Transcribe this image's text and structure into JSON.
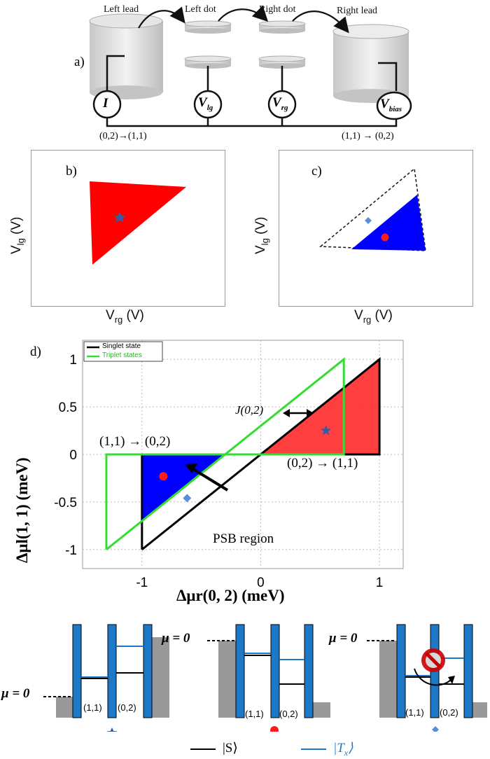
{
  "panel_a": {
    "label": "a)",
    "left_lead": "Left lead",
    "left_dot": "Left dot",
    "right_dot": "Right dot",
    "right_lead": "Right lead",
    "meter_i": "I",
    "meter_vlg": "V",
    "meter_vlg_sub": "lg",
    "meter_vrg": "V",
    "meter_vrg_sub": "rg",
    "meter_vbias": "V",
    "meter_vbias_sub": "bias",
    "transition_left": "(0,2)→(1,1)",
    "transition_right": "(1,1) → (0,2)"
  },
  "panel_b": {
    "label": "b)",
    "xlabel_main": "V",
    "xlabel_sub": "rg",
    "xlabel_unit": " (V)",
    "ylabel_main": "V",
    "ylabel_sub": "lg",
    "ylabel_unit": " (V)",
    "fill_color": "#ff0000",
    "marker": "star"
  },
  "panel_c": {
    "label": "c)",
    "xlabel_main": "V",
    "xlabel_sub": "rg",
    "xlabel_unit": " (V)",
    "ylabel_main": "V",
    "ylabel_sub": "lg",
    "ylabel_unit": " (V)",
    "fill_color": "#0000ff",
    "markers": [
      "diamond",
      "circle"
    ]
  },
  "panel_d": {
    "label": "d)",
    "legend": [
      "Singlet state",
      "Triplet states"
    ],
    "xlabel": "Δμr(0, 2) (meV)",
    "ylabel": "Δμl(1, 1) (meV)",
    "annot_j": "J(0,2)",
    "annot_left": "(1,1) → (0,2)",
    "annot_right": "(0,2) → (1,1)",
    "annot_psb": "PSB region",
    "colors": {
      "singlet": "#000000",
      "triplet": "#33dd33",
      "red_fill": "#ff2a2a",
      "blue_fill": "#0000ff"
    }
  },
  "chart_data": {
    "type": "line",
    "xlabel": "Δμr(0, 2) (meV)",
    "ylabel": "Δμl(1, 1) (meV)",
    "xlim": [
      -1.5,
      1.2
    ],
    "ylim": [
      -1.2,
      1.2
    ],
    "xticks": [
      -1,
      0,
      1
    ],
    "xtick_labels": [
      "-1",
      "0",
      "1"
    ],
    "yticks": [
      1,
      0.5,
      0,
      -0.5,
      -1
    ],
    "ytick_labels": [
      "1",
      "0.5",
      "0",
      "-0.5",
      "-1"
    ],
    "grid": true,
    "legend_position": "top-left",
    "series": [
      {
        "name": "Singlet state",
        "x": [
          -1,
          1,
          1,
          -1,
          -1
        ],
        "y": [
          -1,
          1,
          0,
          0,
          -1
        ]
      },
      {
        "name": "Triplet states",
        "x": [
          -1.3,
          0.7,
          0.7,
          -1.3,
          -1.3
        ],
        "y": [
          -1,
          1,
          0,
          0,
          -1
        ]
      }
    ],
    "markers": [
      {
        "shape": "star",
        "x": 0.55,
        "y": 0.25
      },
      {
        "shape": "circle",
        "x": -0.82,
        "y": -0.23
      },
      {
        "shape": "diamond",
        "x": -0.62,
        "y": -0.46
      }
    ]
  },
  "panel_e": {
    "mu_label": "μ = 0",
    "states": [
      "(1,1)",
      "(0,2)"
    ],
    "legend_s": "|S⟩",
    "legend_t": "|T",
    "legend_t_sub": "x",
    "legend_t_close": "⟩",
    "colors": {
      "barrier": "#1e78c8",
      "lead": "#999999",
      "singlet": "#000000",
      "triplet": "#1e78c8"
    }
  }
}
